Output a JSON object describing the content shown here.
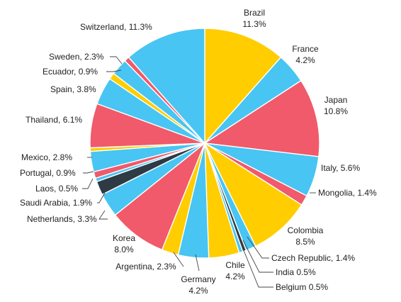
{
  "chart_data": {
    "type": "pie",
    "title": "",
    "slices": [
      {
        "name": "Brazil",
        "value": 11.3,
        "label": "11.3%",
        "color": "#FFCD00"
      },
      {
        "name": "France",
        "value": 4.2,
        "label": "4.2%",
        "color": "#48C5F2"
      },
      {
        "name": "Japan",
        "value": 10.8,
        "label": "10.8%",
        "color": "#F05A6A"
      },
      {
        "name": "Italy",
        "value": 5.6,
        "label": "5.6%",
        "color": "#48C5F2"
      },
      {
        "name": "Mongolia",
        "value": 1.4,
        "label": "1.4%",
        "color": "#F05A6A"
      },
      {
        "name": "Colombia",
        "value": 8.5,
        "label": "8.5%",
        "color": "#FFCD00"
      },
      {
        "name": "Czech Republic",
        "value": 1.4,
        "label": "1.4%",
        "color": "#48C5F2"
      },
      {
        "name": "India",
        "value": 0.5,
        "label": "0.5%",
        "color": "#2E3A44"
      },
      {
        "name": "Belgium",
        "value": 0.5,
        "label": "0.5%",
        "color": "#48C5F2"
      },
      {
        "name": "Chile",
        "value": 4.2,
        "label": "4.2%",
        "color": "#FFCD00"
      },
      {
        "name": "Germany",
        "value": 4.2,
        "label": "4.2%",
        "color": "#48C5F2"
      },
      {
        "name": "Argentina",
        "value": 2.3,
        "label": "2.3%",
        "color": "#FFCD00"
      },
      {
        "name": "Korea",
        "value": 8.0,
        "label": "8.0%",
        "color": "#F05A6A"
      },
      {
        "name": "Netherlands",
        "value": 3.3,
        "label": "3.3%",
        "color": "#48C5F2"
      },
      {
        "name": "Saudi Arabia",
        "value": 1.9,
        "label": "1.9%",
        "color": "#2E3A44"
      },
      {
        "name": "Laos",
        "value": 0.5,
        "label": "0.5%",
        "color": "#48C5F2"
      },
      {
        "name": "Portugal",
        "value": 0.9,
        "label": "0.9%",
        "color": "#F05A6A"
      },
      {
        "name": "Mexico",
        "value": 2.8,
        "label": "2.8%",
        "color": "#48C5F2"
      },
      {
        "name": "(unlabeled)",
        "value": 0.5,
        "label": "",
        "color": "#FFCD00"
      },
      {
        "name": "Thailand",
        "value": 6.1,
        "label": "6.1%",
        "color": "#F05A6A"
      },
      {
        "name": "Spain",
        "value": 3.8,
        "label": "3.8%",
        "color": "#48C5F2"
      },
      {
        "name": "Ecuador",
        "value": 0.9,
        "label": "0.9%",
        "color": "#FFCD00"
      },
      {
        "name": "Sweden",
        "value": 2.3,
        "label": "2.3%",
        "color": "#48C5F2"
      },
      {
        "name": "(unlabeled)",
        "value": 0.7,
        "label": "",
        "color": "#F05A6A"
      },
      {
        "name": "Switzerland",
        "value": 11.3,
        "label": "11.3%",
        "color": "#48C5F2"
      }
    ],
    "labels": [
      {
        "slice": 0,
        "lines": [
          "Brazil",
          "11.3%"
        ]
      },
      {
        "slice": 1,
        "lines": [
          "France",
          "4.2%"
        ]
      },
      {
        "slice": 2,
        "lines": [
          "Japan",
          "10.8%"
        ]
      },
      {
        "slice": 3,
        "lines": [
          "Italy, 5.6%"
        ]
      },
      {
        "slice": 4,
        "lines": [
          "Mongolia, 1.4%"
        ]
      },
      {
        "slice": 5,
        "lines": [
          "Colombia",
          "8.5%"
        ]
      },
      {
        "slice": 6,
        "lines": [
          "Czech Republic, 1.4%"
        ]
      },
      {
        "slice": 7,
        "lines": [
          "India 0.5%"
        ]
      },
      {
        "slice": 8,
        "lines": [
          "Belgium 0.5%"
        ]
      },
      {
        "slice": 9,
        "lines": [
          "Chile",
          "4.2%"
        ]
      },
      {
        "slice": 10,
        "lines": [
          "Germany",
          "4.2%"
        ]
      },
      {
        "slice": 11,
        "lines": [
          "Argentina, 2.3%"
        ]
      },
      {
        "slice": 12,
        "lines": [
          "Korea",
          "8.0%"
        ]
      },
      {
        "slice": 13,
        "lines": [
          "Netherlands, 3.3%"
        ]
      },
      {
        "slice": 14,
        "lines": [
          "Saudi Arabia, 1.9%"
        ]
      },
      {
        "slice": 15,
        "lines": [
          "Laos, 0.5%"
        ]
      },
      {
        "slice": 16,
        "lines": [
          "Portugal, 0.9%"
        ]
      },
      {
        "slice": 17,
        "lines": [
          "Mexico, 2.8%"
        ]
      },
      {
        "slice": 19,
        "lines": [
          "Thailand, 6.1%"
        ]
      },
      {
        "slice": 20,
        "lines": [
          "Spain, 3.8%"
        ]
      },
      {
        "slice": 21,
        "lines": [
          "Ecuador, 0.9%"
        ]
      },
      {
        "slice": 22,
        "lines": [
          "Sweden, 2.3%"
        ]
      },
      {
        "slice": 24,
        "lines": [
          "Switzerland, 11.3%"
        ]
      }
    ],
    "legend": "none",
    "start_angle": "12 o'clock",
    "direction": "clockwise"
  }
}
